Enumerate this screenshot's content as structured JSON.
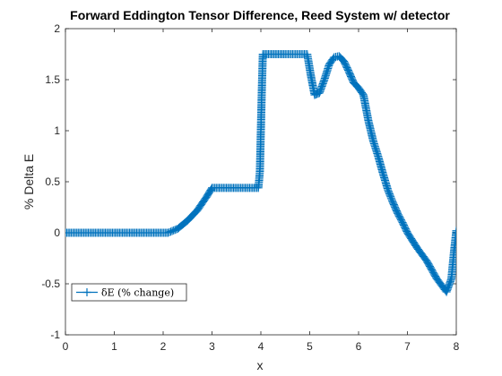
{
  "chart_data": {
    "type": "line",
    "title": "Forward Eddington Tensor Difference, Reed System w/ detector",
    "xlabel": "x",
    "ylabel": "% Delta E",
    "xlim": [
      0,
      8
    ],
    "ylim": [
      -1,
      2
    ],
    "xticks": [
      "0",
      "1",
      "2",
      "3",
      "4",
      "5",
      "6",
      "7",
      "8"
    ],
    "yticks": [
      "-1",
      "-0.5",
      "0",
      "0.5",
      "1",
      "1.5",
      "2"
    ],
    "grid": false,
    "legend_position": "bottom-left",
    "series": [
      {
        "name": "δE (% change)",
        "color": "#0072BD",
        "marker": "plus",
        "anchors": [
          [
            0.0,
            0.0
          ],
          [
            2.1,
            0.0
          ],
          [
            2.3,
            0.04
          ],
          [
            2.5,
            0.12
          ],
          [
            2.7,
            0.22
          ],
          [
            2.9,
            0.36
          ],
          [
            3.0,
            0.44
          ],
          [
            3.5,
            0.44
          ],
          [
            3.95,
            0.44
          ],
          [
            3.98,
            0.6
          ],
          [
            4.0,
            1.0
          ],
          [
            4.02,
            1.4
          ],
          [
            4.04,
            1.75
          ],
          [
            4.5,
            1.75
          ],
          [
            4.95,
            1.75
          ],
          [
            5.02,
            1.55
          ],
          [
            5.1,
            1.35
          ],
          [
            5.2,
            1.37
          ],
          [
            5.3,
            1.5
          ],
          [
            5.4,
            1.65
          ],
          [
            5.5,
            1.72
          ],
          [
            5.6,
            1.73
          ],
          [
            5.7,
            1.68
          ],
          [
            5.8,
            1.58
          ],
          [
            5.9,
            1.47
          ],
          [
            6.0,
            1.42
          ],
          [
            6.1,
            1.35
          ],
          [
            6.2,
            1.1
          ],
          [
            6.3,
            0.9
          ],
          [
            6.4,
            0.75
          ],
          [
            6.5,
            0.58
          ],
          [
            6.6,
            0.42
          ],
          [
            6.7,
            0.3
          ],
          [
            6.8,
            0.19
          ],
          [
            6.9,
            0.1
          ],
          [
            7.0,
            0.0
          ],
          [
            7.2,
            -0.15
          ],
          [
            7.4,
            -0.28
          ],
          [
            7.6,
            -0.45
          ],
          [
            7.8,
            -0.58
          ],
          [
            7.9,
            -0.45
          ],
          [
            7.95,
            -0.2
          ],
          [
            8.0,
            0.02
          ]
        ]
      }
    ]
  }
}
